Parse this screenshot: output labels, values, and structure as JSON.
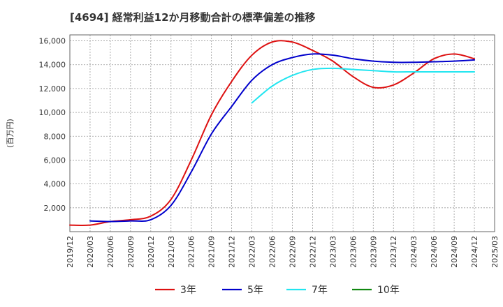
{
  "chart_data": {
    "type": "line",
    "title": "[4694]  経常利益12か月移動合計の標準偏差の推移",
    "ylabel": "(百万円)",
    "xlabel": "",
    "ylim": [
      0,
      16500
    ],
    "yticks": [
      2000,
      4000,
      6000,
      8000,
      10000,
      12000,
      14000,
      16000
    ],
    "ytick_labels": [
      "2,000",
      "4,000",
      "6,000",
      "8,000",
      "10,000",
      "12,000",
      "14,000",
      "16,000"
    ],
    "x_ticks": [
      "2019/12",
      "2020/03",
      "2020/06",
      "2020/09",
      "2020/12",
      "2021/03",
      "2021/06",
      "2021/09",
      "2021/12",
      "2022/03",
      "2022/06",
      "2022/09",
      "2022/12",
      "2023/03",
      "2023/06",
      "2023/09",
      "2023/12",
      "2024/03",
      "2024/06",
      "2024/09",
      "2024/12",
      "2025/03"
    ],
    "grid": true,
    "legend_position": "bottom",
    "series": [
      {
        "name": "3年",
        "color": "#dd1111",
        "points": [
          [
            "2019/12",
            550
          ],
          [
            "2020/03",
            550
          ],
          [
            "2020/06",
            850
          ],
          [
            "2020/09",
            1000
          ],
          [
            "2020/12",
            1300
          ],
          [
            "2021/03",
            2700
          ],
          [
            "2021/06",
            6000
          ],
          [
            "2021/09",
            9800
          ],
          [
            "2021/12",
            12600
          ],
          [
            "2022/03",
            14800
          ],
          [
            "2022/06",
            15900
          ],
          [
            "2022/09",
            15900
          ],
          [
            "2022/12",
            15200
          ],
          [
            "2023/03",
            14300
          ],
          [
            "2023/06",
            13000
          ],
          [
            "2023/09",
            12100
          ],
          [
            "2023/12",
            12300
          ],
          [
            "2024/03",
            13300
          ],
          [
            "2024/06",
            14500
          ],
          [
            "2024/09",
            14900
          ],
          [
            "2024/12",
            14500
          ]
        ]
      },
      {
        "name": "5年",
        "color": "#0000cc",
        "points": [
          [
            "2020/03",
            900
          ],
          [
            "2020/06",
            850
          ],
          [
            "2020/09",
            900
          ],
          [
            "2020/12",
            1000
          ],
          [
            "2021/03",
            2200
          ],
          [
            "2021/06",
            5000
          ],
          [
            "2021/09",
            8200
          ],
          [
            "2021/12",
            10500
          ],
          [
            "2022/03",
            12700
          ],
          [
            "2022/06",
            14000
          ],
          [
            "2022/09",
            14600
          ],
          [
            "2022/12",
            14900
          ],
          [
            "2023/03",
            14800
          ],
          [
            "2023/06",
            14500
          ],
          [
            "2023/09",
            14300
          ],
          [
            "2023/12",
            14200
          ],
          [
            "2024/03",
            14200
          ],
          [
            "2024/06",
            14250
          ],
          [
            "2024/09",
            14300
          ],
          [
            "2024/12",
            14400
          ]
        ]
      },
      {
        "name": "7年",
        "color": "#22e5f0",
        "points": [
          [
            "2022/03",
            10800
          ],
          [
            "2022/06",
            12200
          ],
          [
            "2022/09",
            13100
          ],
          [
            "2022/12",
            13600
          ],
          [
            "2023/03",
            13700
          ],
          [
            "2023/06",
            13600
          ],
          [
            "2023/09",
            13500
          ],
          [
            "2023/12",
            13400
          ],
          [
            "2024/03",
            13400
          ],
          [
            "2024/06",
            13400
          ],
          [
            "2024/09",
            13400
          ],
          [
            "2024/12",
            13400
          ]
        ]
      },
      {
        "name": "10年",
        "color": "#118811",
        "points": []
      }
    ]
  }
}
